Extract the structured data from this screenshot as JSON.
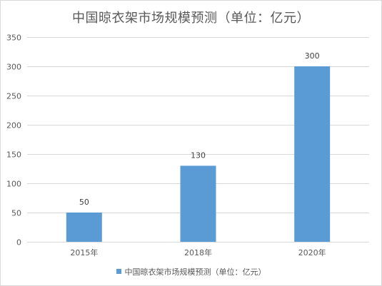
{
  "chart_data": {
    "type": "bar",
    "title": "中国晾衣架市场规模预测（单位：亿元）",
    "categories": [
      "2015年",
      "2018年",
      "2020年"
    ],
    "series": [
      {
        "name": "中国晾衣架市场规模预测（单位：亿元）",
        "values": [
          50,
          130,
          300
        ]
      }
    ],
    "data_labels": [
      "50",
      "130",
      "300"
    ],
    "yticks": [
      0,
      50,
      100,
      150,
      200,
      250,
      300,
      350
    ],
    "ylim": [
      0,
      350
    ],
    "grid": true,
    "legend": "bottom-center",
    "bar_color": "#5b9bd5",
    "grid_color": "#d9d9d9"
  }
}
